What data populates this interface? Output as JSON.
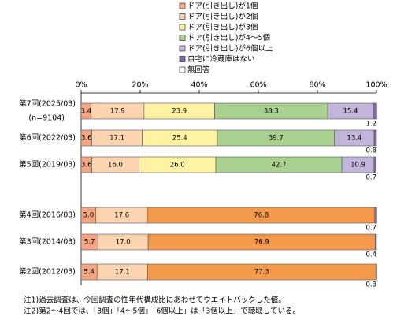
{
  "chart_data": {
    "type": "stacked-bar-horizontal",
    "categories": [
      "第7回(2025/03)",
      "第6回(2022/03)",
      "第5回(2019/03)",
      "第4回(2016/03)",
      "第3回(2014/03)",
      "第2回(2012/03)"
    ],
    "sample_label": "(n=9104)",
    "series": [
      {
        "name": "ドア(引き出し)が1個",
        "color": "#f4a582",
        "values": [
          3.4,
          3.6,
          3.6,
          5.0,
          5.7,
          5.4
        ],
        "value_labels": [
          "3.4",
          "3.6",
          "3.6",
          "5.0",
          "5.7",
          "5.4"
        ]
      },
      {
        "name": "ドア(引き出し)が2個",
        "color": "#fcd5b0",
        "values": [
          17.9,
          17.1,
          16.0,
          17.6,
          17.0,
          17.1
        ],
        "value_labels": [
          "17.9",
          "17.1",
          "16.0",
          "17.6",
          "17.0",
          "17.1"
        ]
      },
      {
        "name": "ドア(引き出し)が3個",
        "color": "#fff2a3",
        "values": [
          23.9,
          25.4,
          26.0,
          null,
          null,
          null
        ],
        "value_labels": [
          "23.9",
          "25.4",
          "26.0",
          null,
          null,
          null
        ]
      },
      {
        "name": "ドア(引き出し)が4～5個",
        "color": "#a9d08e",
        "values": [
          38.3,
          39.7,
          42.7,
          null,
          null,
          null
        ]
      },
      {
        "name": "ドア(引き出し)が6個以上",
        "color": "#c3b4d9",
        "values": [
          15.4,
          13.4,
          10.9,
          null,
          null,
          null
        ]
      },
      {
        "color": "#f59a4a",
        "values": [
          null,
          null,
          null,
          76.8,
          76.9,
          77.3
        ]
      },
      {
        "name": "自宅に冷蔵庫はない",
        "color": "#8068a8",
        "values": [
          1.2,
          0.8,
          0.7,
          0.7,
          0.4,
          0.3
        ],
        "small": true
      },
      {
        "name": "無回答",
        "color": "#ffffff",
        "values": [
          null,
          null,
          null,
          null,
          null,
          null
        ]
      }
    ],
    "xlim": [
      0,
      100
    ],
    "xticks": [
      {
        "value": 0,
        "label": "0%"
      },
      {
        "value": 20,
        "label": "20%"
      },
      {
        "value": 40,
        "label": "40%"
      },
      {
        "value": 60,
        "label": "60%"
      },
      {
        "value": 80,
        "label": "80%"
      },
      {
        "value": 100,
        "label": "100%"
      }
    ],
    "notes": [
      "注1)過去調査は、今回調査の性年代構成比にあわせてウエイトバックした値。",
      "注2)第2～4回では、「3個」「4～5個」「6個以上」は「3個以上」で聴取している。"
    ]
  }
}
